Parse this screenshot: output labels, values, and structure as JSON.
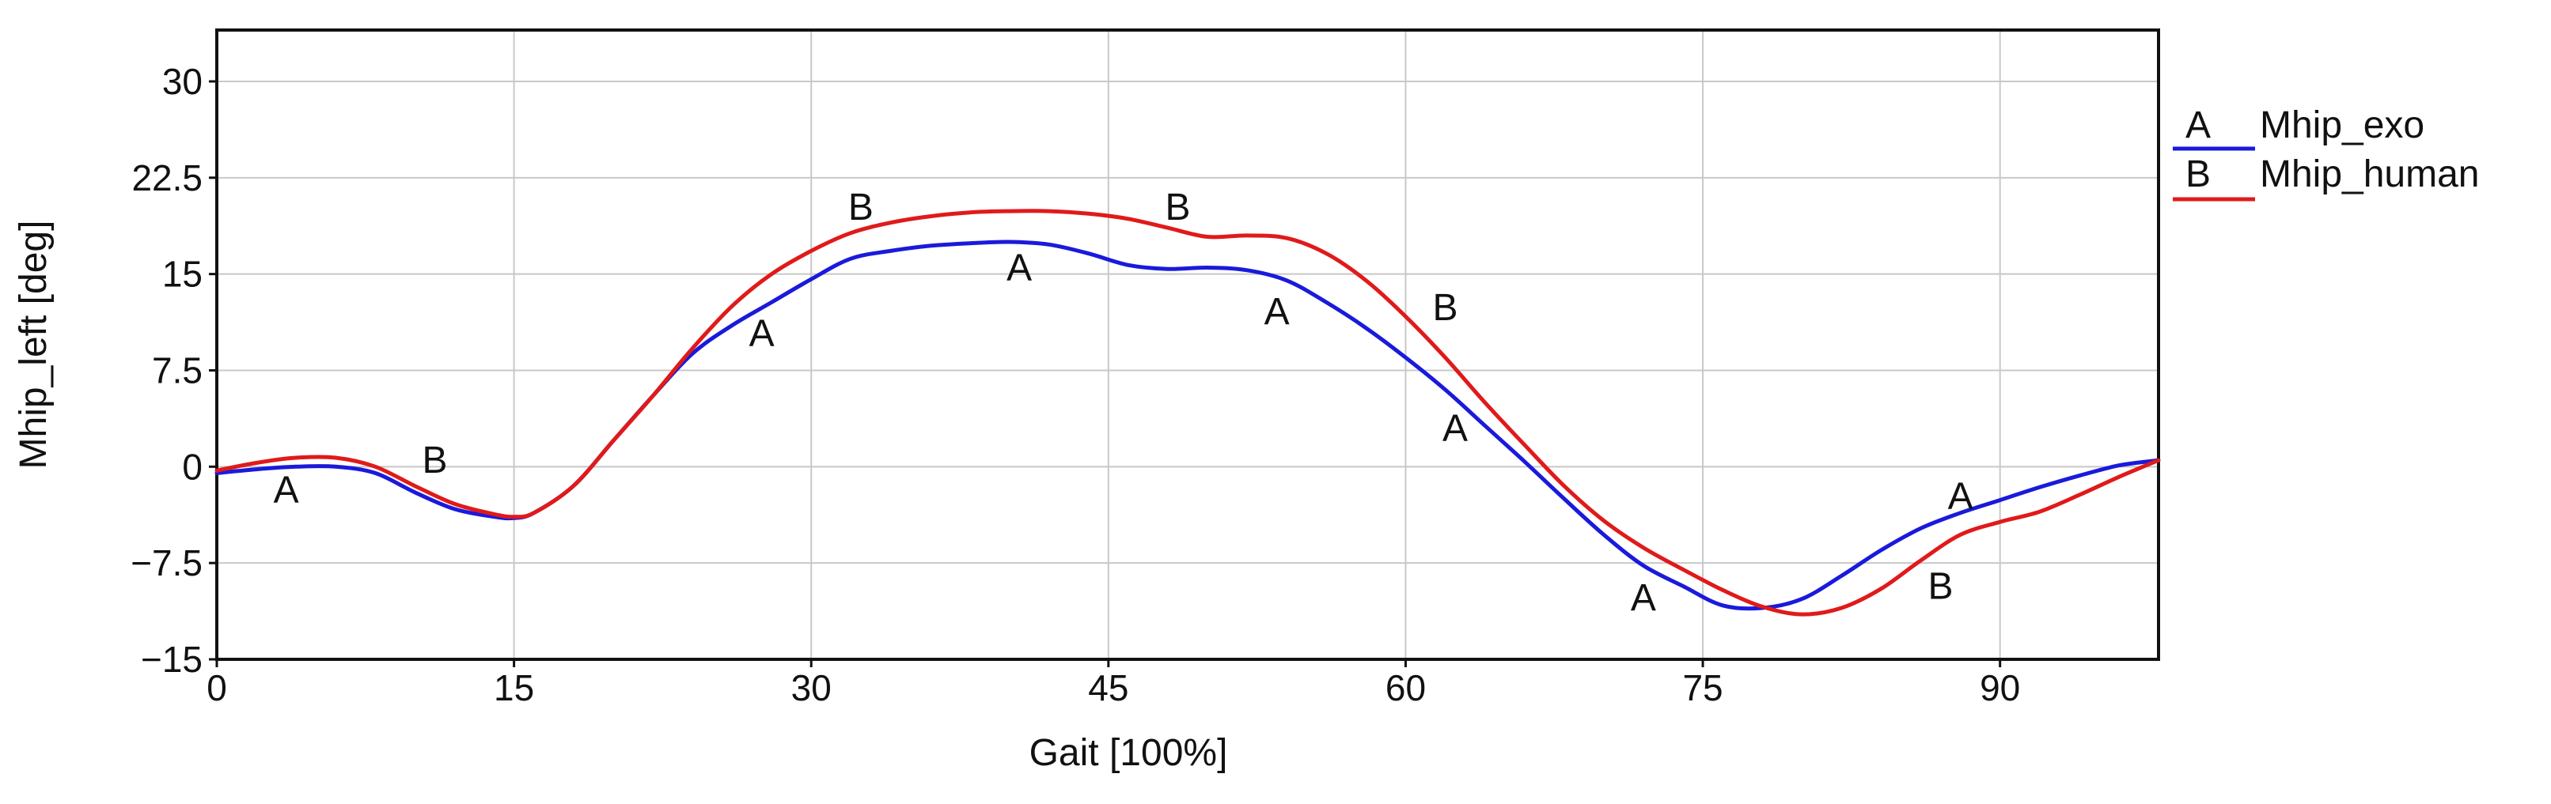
{
  "chart_data": {
    "type": "line",
    "xlabel": "Gait [100%]",
    "ylabel": "Mhip_left [deg]",
    "xlim": [
      0,
      98
    ],
    "ylim": [
      -15,
      34
    ],
    "xticks": [
      0,
      15,
      30,
      45,
      60,
      75,
      90
    ],
    "yticks": [
      -15,
      -7.5,
      0,
      7.5,
      15,
      22.5,
      30
    ],
    "ytick_labels": [
      "−15",
      "−7.5",
      "0",
      "7.5",
      "15",
      "22.5",
      "30"
    ],
    "grid": true,
    "legend_position": "right",
    "series": [
      {
        "name": "Mhip_exo",
        "marker": "A",
        "color": "#1a1adb",
        "x": [
          0,
          2,
          4,
          6,
          8,
          10,
          12,
          14,
          15,
          16,
          18,
          20,
          22,
          24,
          26,
          28,
          30,
          32,
          34,
          36,
          38,
          40,
          42,
          44,
          46,
          48,
          50,
          52,
          54,
          56,
          58,
          60,
          62,
          64,
          66,
          68,
          70,
          72,
          74,
          76,
          78,
          80,
          82,
          84,
          86,
          88,
          90,
          92,
          94,
          96,
          98
        ],
        "values": [
          -0.5,
          -0.2,
          0,
          0,
          -0.5,
          -2,
          -3.3,
          -3.9,
          -4,
          -3.6,
          -1.5,
          2,
          5.5,
          8.8,
          11,
          12.8,
          14.6,
          16.2,
          16.8,
          17.2,
          17.4,
          17.5,
          17.3,
          16.6,
          15.7,
          15.4,
          15.5,
          15.3,
          14.5,
          12.8,
          10.8,
          8.5,
          6,
          3.2,
          0.4,
          -2.5,
          -5.3,
          -7.7,
          -9.3,
          -10.8,
          -11,
          -10.3,
          -8.5,
          -6.5,
          -4.8,
          -3.6,
          -2.6,
          -1.6,
          -0.7,
          0.1,
          0.5
        ]
      },
      {
        "name": "Mhip_human",
        "marker": "B",
        "color": "#e01a1a",
        "x": [
          0,
          2,
          4,
          6,
          8,
          10,
          12,
          14,
          15,
          16,
          18,
          20,
          22,
          24,
          26,
          28,
          30,
          32,
          34,
          36,
          38,
          40,
          42,
          44,
          46,
          48,
          50,
          52,
          54,
          56,
          58,
          60,
          62,
          64,
          66,
          68,
          70,
          72,
          74,
          76,
          78,
          80,
          82,
          84,
          86,
          88,
          90,
          92,
          94,
          96,
          98
        ],
        "values": [
          -0.3,
          0.3,
          0.7,
          0.7,
          0,
          -1.5,
          -2.9,
          -3.7,
          -3.9,
          -3.6,
          -1.5,
          2,
          5.5,
          9.2,
          12.5,
          15,
          16.8,
          18.2,
          19,
          19.5,
          19.8,
          19.9,
          19.9,
          19.7,
          19.3,
          18.6,
          17.9,
          18,
          17.8,
          16.6,
          14.5,
          11.7,
          8.5,
          5,
          1.7,
          -1.5,
          -4.2,
          -6.3,
          -8,
          -9.6,
          -10.9,
          -11.5,
          -11,
          -9.5,
          -7.3,
          -5.3,
          -4.3,
          -3.5,
          -2.2,
          -0.8,
          0.5
        ]
      }
    ],
    "marker_labels": [
      {
        "series": 0,
        "text": "A",
        "x": 3.5,
        "y": -1.8
      },
      {
        "series": 0,
        "text": "A",
        "x": 27.5,
        "y": 10.4
      },
      {
        "series": 0,
        "text": "A",
        "x": 40.5,
        "y": 15.5
      },
      {
        "series": 0,
        "text": "A",
        "x": 53.5,
        "y": 12.1
      },
      {
        "series": 0,
        "text": "A",
        "x": 62.5,
        "y": 3.0
      },
      {
        "series": 0,
        "text": "A",
        "x": 72,
        "y": -10.2
      },
      {
        "series": 0,
        "text": "A",
        "x": 88,
        "y": -2.3
      },
      {
        "series": 1,
        "text": "B",
        "x": 11,
        "y": 0.5
      },
      {
        "series": 1,
        "text": "B",
        "x": 32.5,
        "y": 20.2
      },
      {
        "series": 1,
        "text": "B",
        "x": 48.5,
        "y": 20.2
      },
      {
        "series": 1,
        "text": "B",
        "x": 62,
        "y": 12.4
      },
      {
        "series": 1,
        "text": "B",
        "x": 87,
        "y": -9.3
      }
    ]
  }
}
